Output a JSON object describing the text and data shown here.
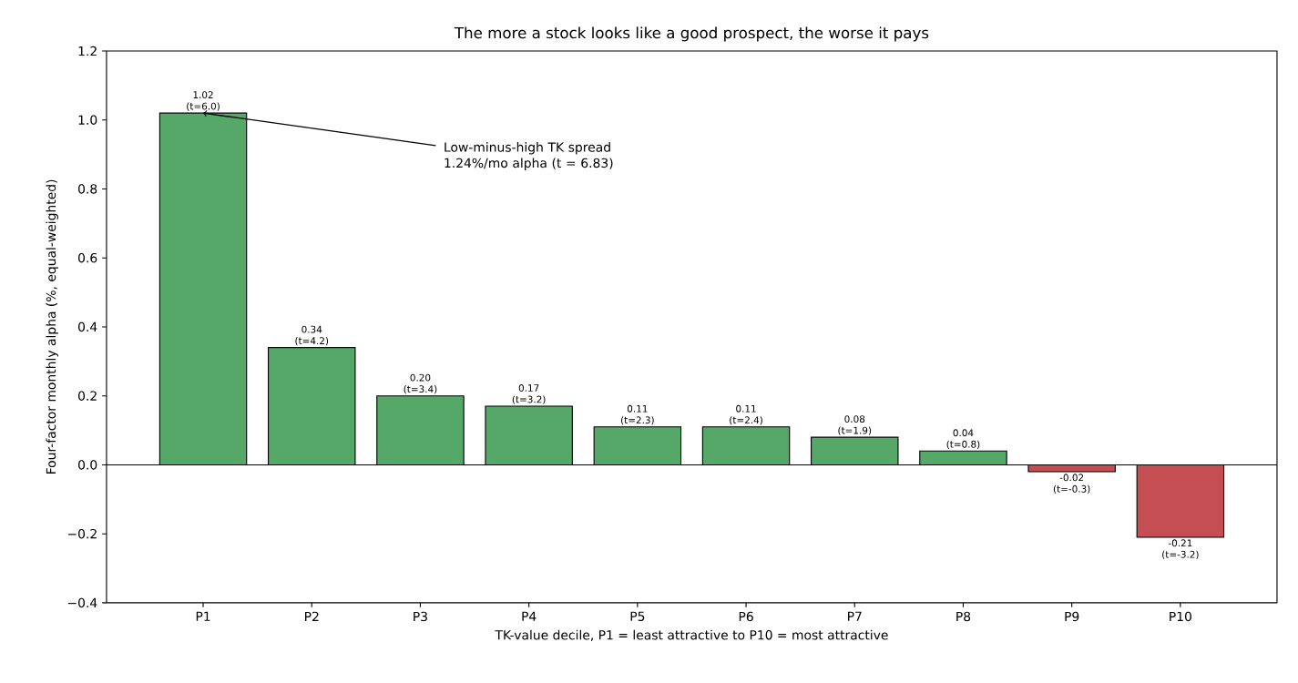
{
  "chart_data": {
    "type": "bar",
    "title": "The more a stock looks like a good prospect, the worse it pays",
    "xlabel": "TK-value decile, P1 = least attractive to P10 = most attractive",
    "ylabel": "Four-factor monthly alpha (%, equal-weighted)",
    "categories": [
      "P1",
      "P2",
      "P3",
      "P4",
      "P5",
      "P6",
      "P7",
      "P8",
      "P9",
      "P10"
    ],
    "values": [
      1.02,
      0.34,
      0.2,
      0.17,
      0.11,
      0.11,
      0.08,
      0.04,
      -0.02,
      -0.21
    ],
    "colors": [
      "#55a868",
      "#55a868",
      "#55a868",
      "#55a868",
      "#55a868",
      "#55a868",
      "#55a868",
      "#55a868",
      "#c44e52",
      "#c44e52"
    ],
    "value_labels": [
      "1.02 (t=6.0)",
      "0.34 (t=4.2)",
      "0.20 (t=3.4)",
      "0.17 (t=3.2)",
      "0.11 (t=2.3)",
      "0.11 (t=2.4)",
      "0.08 (t=1.9)",
      "0.04 (t=0.8)",
      "-0.02 (t=-0.3)",
      "-0.21 (t=-3.2)"
    ],
    "ylim": [
      -0.4,
      1.2
    ],
    "yticks": [
      {
        "value": -0.4,
        "label": "−0.4"
      },
      {
        "value": -0.2,
        "label": "−0.2"
      },
      "0.0",
      0.2,
      0.4,
      0.6,
      0.8,
      "1.0",
      1.2
    ],
    "ref_lines": [
      {
        "axis": "y",
        "value": 0,
        "color": "#000000"
      }
    ],
    "annotations": [
      {
        "text": "Low-minus-high TK spread 1.24%/mo alpha (t = 6.83)",
        "x": "P1",
        "y": 1.02
      }
    ],
    "grid": false
  }
}
